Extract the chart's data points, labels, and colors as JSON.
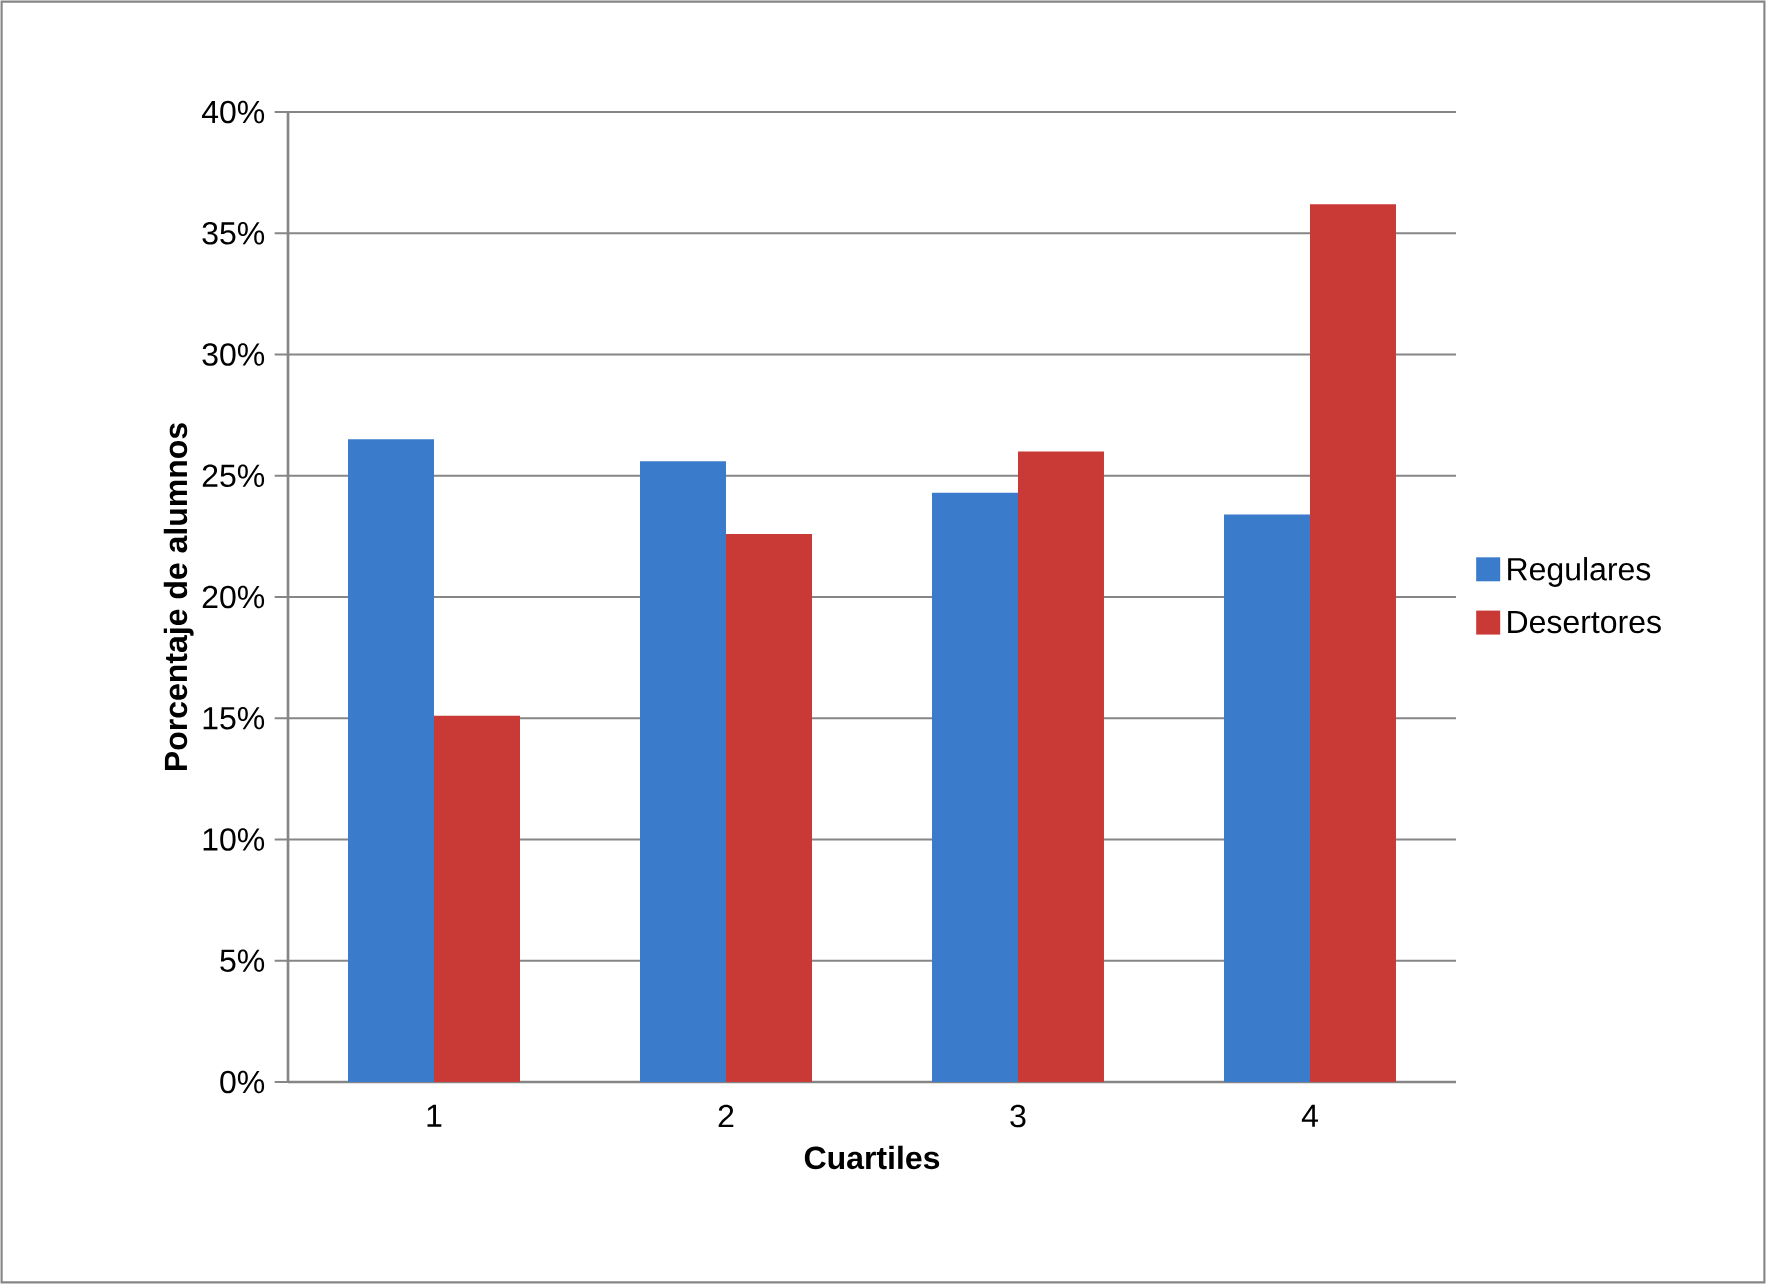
{
  "chart_data": {
    "type": "bar",
    "xlabel": "Cuartiles",
    "ylabel": "Porcentaje de alumnos",
    "categories": [
      "1",
      "2",
      "3",
      "4"
    ],
    "series": [
      {
        "name": "Regulares",
        "color": "#3a7bcb",
        "values": [
          26.5,
          25.6,
          24.3,
          23.4
        ]
      },
      {
        "name": "Desertores",
        "color": "#c93a36",
        "values": [
          15.1,
          22.6,
          26.0,
          36.2
        ]
      }
    ],
    "ylim": [
      0,
      40
    ],
    "yticks": [
      {
        "value": 0,
        "label": "0%"
      },
      {
        "value": 5,
        "label": "5%"
      },
      {
        "value": 10,
        "label": "10%"
      },
      {
        "value": 15,
        "label": "15%"
      },
      {
        "value": 20,
        "label": "20%"
      },
      {
        "value": 25,
        "label": "25%"
      },
      {
        "value": 30,
        "label": "30%"
      },
      {
        "value": 35,
        "label": "35%"
      },
      {
        "value": 40,
        "label": "40%"
      }
    ],
    "grid": "y",
    "legend": "right"
  }
}
